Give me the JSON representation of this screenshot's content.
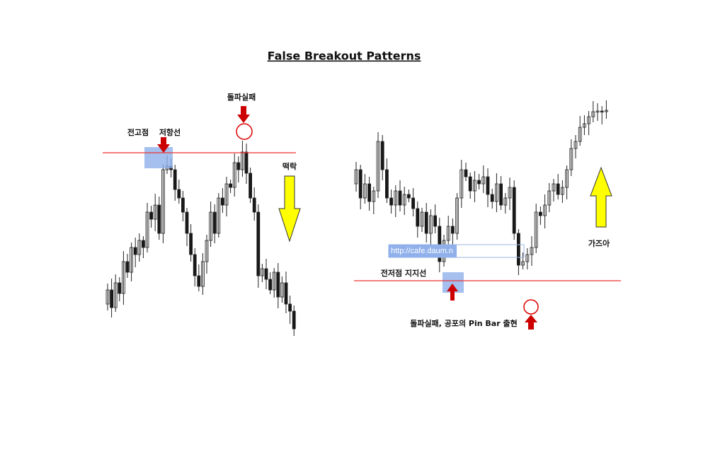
{
  "header": {
    "title": "False Breakout Patterns"
  },
  "left_panel": {
    "failed_breakout": "돌파실패",
    "previous_high": "전고점",
    "resistance": "저항선",
    "plunge": "떡락"
  },
  "right_panel": {
    "watermark": "http://cafe.daum.n",
    "rally": "가즈아",
    "support": "전저점 지지선",
    "pin_bar_note": "돌파실패, 공포의 Pin Bar 출현"
  }
}
